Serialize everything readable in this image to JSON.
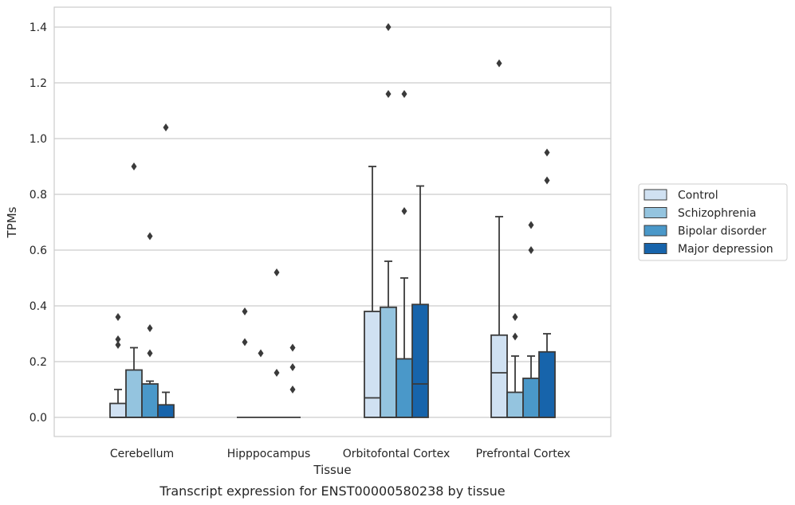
{
  "chart_data": {
    "type": "box",
    "caption": "Transcript expression for ENST00000580238 by tissue",
    "xlabel": "Tissue",
    "ylabel": "TPMs",
    "ylim": [
      -0.07,
      1.47
    ],
    "yticks": [
      "0.0",
      "0.2",
      "0.4",
      "0.6",
      "0.8",
      "1.0",
      "1.2",
      "1.4"
    ],
    "grid": true,
    "legend_position": "right",
    "categories": [
      "Cerebellum",
      "Hipppocampus",
      "Orbitofontal Cortex",
      "Prefrontal Cortex"
    ],
    "series": [
      {
        "name": "Control",
        "color": "#d0e1f2",
        "boxes": [
          {
            "q1": 0.0,
            "median": 0.0,
            "q3": 0.05,
            "whisker_low": 0.0,
            "whisker_high": 0.1,
            "outliers": [
              0.26,
              0.28,
              0.36
            ]
          },
          {
            "q1": 0.0,
            "median": 0.0,
            "q3": 0.0,
            "whisker_low": 0.0,
            "whisker_high": 0.0,
            "outliers": [
              0.27,
              0.38
            ]
          },
          {
            "q1": 0.0,
            "median": 0.07,
            "q3": 0.38,
            "whisker_low": 0.0,
            "whisker_high": 0.9,
            "outliers": []
          },
          {
            "q1": 0.0,
            "median": 0.16,
            "q3": 0.295,
            "whisker_low": 0.0,
            "whisker_high": 0.72,
            "outliers": [
              1.27
            ]
          }
        ]
      },
      {
        "name": "Schizophrenia",
        "color": "#94c4df",
        "boxes": [
          {
            "q1": 0.0,
            "median": 0.0,
            "q3": 0.17,
            "whisker_low": 0.0,
            "whisker_high": 0.25,
            "outliers": [
              0.9
            ]
          },
          {
            "q1": 0.0,
            "median": 0.0,
            "q3": 0.0,
            "whisker_low": 0.0,
            "whisker_high": 0.0,
            "outliers": [
              0.23
            ]
          },
          {
            "q1": 0.0,
            "median": 0.0,
            "q3": 0.395,
            "whisker_low": 0.0,
            "whisker_high": 0.56,
            "outliers": [
              1.16,
              1.4
            ]
          },
          {
            "q1": 0.0,
            "median": 0.0,
            "q3": 0.09,
            "whisker_low": 0.0,
            "whisker_high": 0.22,
            "outliers": [
              0.29,
              0.36
            ]
          }
        ]
      },
      {
        "name": "Bipolar disorder",
        "color": "#4a98c9",
        "boxes": [
          {
            "q1": 0.0,
            "median": 0.0,
            "q3": 0.12,
            "whisker_low": 0.0,
            "whisker_high": 0.13,
            "outliers": [
              0.23,
              0.32,
              0.65
            ]
          },
          {
            "q1": 0.0,
            "median": 0.0,
            "q3": 0.0,
            "whisker_low": 0.0,
            "whisker_high": 0.0,
            "outliers": [
              0.16,
              0.52
            ]
          },
          {
            "q1": 0.0,
            "median": 0.0,
            "q3": 0.21,
            "whisker_low": 0.0,
            "whisker_high": 0.5,
            "outliers": [
              0.74,
              1.16
            ]
          },
          {
            "q1": 0.0,
            "median": 0.0,
            "q3": 0.14,
            "whisker_low": 0.0,
            "whisker_high": 0.22,
            "outliers": [
              0.6,
              0.69
            ]
          }
        ]
      },
      {
        "name": "Major depression",
        "color": "#1764ab",
        "boxes": [
          {
            "q1": 0.0,
            "median": 0.0,
            "q3": 0.045,
            "whisker_low": 0.0,
            "whisker_high": 0.09,
            "outliers": [
              1.04
            ]
          },
          {
            "q1": 0.0,
            "median": 0.0,
            "q3": 0.0,
            "whisker_low": 0.0,
            "whisker_high": 0.0,
            "outliers": [
              0.1,
              0.18,
              0.25
            ]
          },
          {
            "q1": 0.0,
            "median": 0.12,
            "q3": 0.405,
            "whisker_low": 0.0,
            "whisker_high": 0.83,
            "outliers": []
          },
          {
            "q1": 0.0,
            "median": 0.0,
            "q3": 0.235,
            "whisker_low": 0.0,
            "whisker_high": 0.3,
            "outliers": [
              0.85,
              0.95
            ]
          }
        ]
      }
    ]
  }
}
